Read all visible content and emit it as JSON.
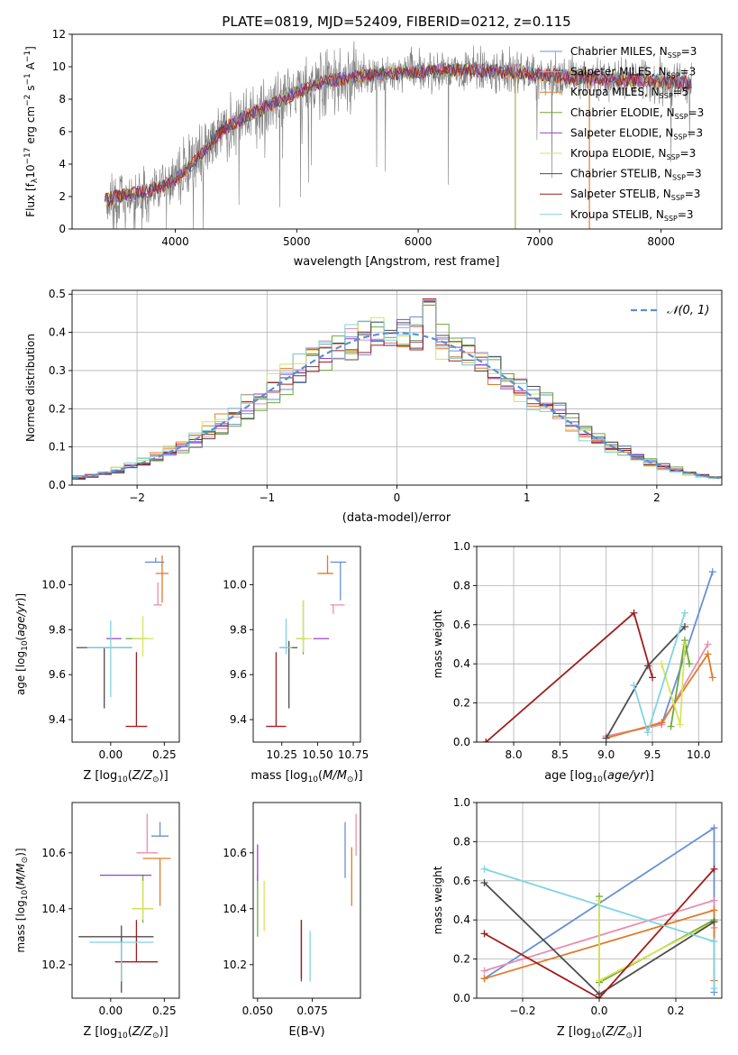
{
  "figure": {
    "title": "PLATE=0819, MJD=52409, FIBERID=0212, z=0.115"
  },
  "series": [
    {
      "name": "Chabrier MILES, N$_{SSP}$=3",
      "label": "Chabrier MILES, N",
      "sub": "SSP",
      "tail": "=3",
      "color": "#6a8fd8"
    },
    {
      "name": "Salpeter MILES",
      "label": "Salpeter MILES, N",
      "sub": "SSP",
      "tail": "=3",
      "color": "#e88fb0"
    },
    {
      "name": "Kroupa MILES",
      "label": "Kroupa MILES, N",
      "sub": "SSP",
      "tail": "=5",
      "color": "#e07b2a"
    },
    {
      "name": "Chabrier ELODIE",
      "label": "Chabrier ELODIE, N",
      "sub": "SSP",
      "tail": "=3",
      "color": "#6aaa3a"
    },
    {
      "name": "Salpeter ELODIE",
      "label": "Salpeter ELODIE, N",
      "sub": "SSP",
      "tail": "=3",
      "color": "#9b3fc7"
    },
    {
      "name": "Kroupa ELODIE",
      "label": "Kroupa ELODIE, N",
      "sub": "SSP",
      "tail": "=3",
      "color": "#d8e35c"
    },
    {
      "name": "Chabrier STELIB",
      "label": "Chabrier STELIB, N",
      "sub": "SSP",
      "tail": "=3",
      "color": "#4d4d4d"
    },
    {
      "name": "Salpeter STELIB",
      "label": "Salpeter STELIB, N",
      "sub": "SSP",
      "tail": "=3",
      "color": "#a31c1c"
    },
    {
      "name": "Kroupa STELIB",
      "label": "Kroupa STELIB, N",
      "sub": "SSP",
      "tail": "=3",
      "color": "#7fd4e0"
    }
  ],
  "chart_data": [
    {
      "id": "spectrum",
      "type": "line",
      "xlabel": "wavelength [Angstrom, rest frame]",
      "ylabel": "Flux [f",
      "ylabel_full": "Flux [f_λ 10^-17 erg cm^-2 s^-1 A^-1]",
      "xlim": [
        3150,
        8500
      ],
      "ylim": [
        0,
        12
      ],
      "xticks": [
        4000,
        5000,
        6000,
        7000,
        8000
      ],
      "yticks": [
        0,
        2,
        4,
        6,
        8,
        10,
        12
      ],
      "grid": false,
      "legend_placement": "top-right",
      "continuum_x": [
        3400,
        3600,
        3800,
        4000,
        4200,
        4400,
        4600,
        4800,
        5000,
        5200,
        5400,
        5600,
        5800,
        6000,
        6200,
        6400,
        6600,
        6800,
        7000,
        7200,
        7400,
        7600,
        7800,
        8000,
        8250
      ],
      "continuum_y": [
        1.8,
        2.1,
        2.4,
        3.0,
        4.5,
        6.2,
        7.0,
        7.7,
        8.4,
        9.0,
        9.3,
        9.5,
        9.6,
        9.7,
        9.8,
        9.8,
        9.7,
        9.7,
        9.5,
        9.4,
        9.3,
        9.2,
        9.2,
        9.1,
        9.0
      ]
    },
    {
      "id": "residuals",
      "type": "histogram",
      "xlabel": "(data-model)/error",
      "ylabel": "Normed distribution",
      "xlim": [
        -2.5,
        2.5
      ],
      "ylim": [
        0,
        0.51
      ],
      "xticks": [
        -2,
        -1,
        0,
        1,
        2
      ],
      "yticks": [
        0.0,
        0.1,
        0.2,
        0.3,
        0.4,
        0.5
      ],
      "grid": true,
      "legend": "𝒩(0, 1)",
      "legend_placement": "top-right",
      "bin_width": 0.1
    },
    {
      "id": "age-vs-Z",
      "type": "errorbar",
      "xlabel": "Z [log",
      "ylabel": "age  [log",
      "xlim": [
        -0.18,
        0.32
      ],
      "ylim": [
        9.3,
        10.17
      ],
      "xticks": [
        0.0,
        0.25
      ],
      "yticks": [
        9.4,
        9.6,
        9.8,
        10.0
      ],
      "points": [
        {
          "x": 0.21,
          "y": 10.1,
          "xe": [
            0.05,
            0.04
          ],
          "ye": [
            0.0,
            0.02
          ],
          "s": 0
        },
        {
          "x": 0.22,
          "y": 9.91,
          "xe": [
            0.02,
            0.02
          ],
          "ye": [
            0.0,
            0.1
          ],
          "s": 1
        },
        {
          "x": 0.24,
          "y": 10.05,
          "xe": [
            0.03,
            0.03
          ],
          "ye": [
            0.13,
            0.08
          ],
          "s": 2
        },
        {
          "x": 0.12,
          "y": 9.76,
          "xe": [
            0.05,
            0.05
          ],
          "ye": [
            0.0,
            0.0
          ],
          "s": 3
        },
        {
          "x": 0.03,
          "y": 9.76,
          "xe": [
            0.05,
            0.02
          ],
          "ye": [
            0.0,
            0.0
          ],
          "s": 4
        },
        {
          "x": 0.15,
          "y": 9.76,
          "xe": [
            0.05,
            0.05
          ],
          "ye": [
            0.08,
            0.1
          ],
          "s": 5
        },
        {
          "x": -0.03,
          "y": 9.72,
          "xe": [
            0.13,
            0.13
          ],
          "ye": [
            0.27,
            0.0
          ],
          "s": 6
        },
        {
          "x": 0.12,
          "y": 9.37,
          "xe": [
            0.05,
            0.05
          ],
          "ye": [
            0.0,
            0.33
          ],
          "s": 7
        },
        {
          "x": 0.0,
          "y": 9.72,
          "xe": [
            0.11,
            0.1
          ],
          "ye": [
            0.22,
            0.12
          ],
          "s": 8
        }
      ]
    },
    {
      "id": "age-vs-mass",
      "type": "errorbar",
      "xlabel": "mass [log",
      "xlim": [
        10.05,
        10.8
      ],
      "ylim": [
        9.3,
        10.17
      ],
      "xticks": [
        10.25,
        10.5,
        10.75
      ],
      "yticks": [
        9.4,
        9.6,
        9.8,
        10.0
      ],
      "points": [
        {
          "x": 10.66,
          "y": 10.1,
          "xe": [
            0.07,
            0.04
          ],
          "ye": [
            0.17,
            0.0
          ],
          "s": 0
        },
        {
          "x": 10.61,
          "y": 9.91,
          "xe": [
            0.02,
            0.08
          ],
          "ye": [
            0.04,
            0.0
          ],
          "s": 1
        },
        {
          "x": 10.57,
          "y": 10.05,
          "xe": [
            0.07,
            0.04
          ],
          "ye": [
            0.0,
            0.08
          ],
          "s": 2
        },
        {
          "x": 10.4,
          "y": 9.76,
          "xe": [
            0.05,
            0.02
          ],
          "ye": [
            0.07,
            0.17
          ],
          "s": 3
        },
        {
          "x": 10.52,
          "y": 9.76,
          "xe": [
            0.05,
            0.06
          ],
          "ye": [
            0.0,
            0.0
          ],
          "s": 4
        },
        {
          "x": 10.4,
          "y": 9.76,
          "xe": [
            0.05,
            0.06
          ],
          "ye": [
            0.06,
            0.17
          ],
          "s": 5
        },
        {
          "x": 10.3,
          "y": 9.72,
          "xe": [
            0.06,
            0.06
          ],
          "ye": [
            0.27,
            0.03
          ],
          "s": 6
        },
        {
          "x": 10.21,
          "y": 9.37,
          "xe": [
            0.07,
            0.07
          ],
          "ye": [
            0.0,
            0.33
          ],
          "s": 7
        },
        {
          "x": 10.28,
          "y": 9.72,
          "xe": [
            0.05,
            0.04
          ],
          "ye": [
            0.03,
            0.13
          ],
          "s": 8
        }
      ]
    },
    {
      "id": "weight-vs-age",
      "type": "line",
      "xlabel": "age  [log",
      "ylabel": "mass weight",
      "xlim": [
        7.6,
        10.25
      ],
      "ylim": [
        0,
        1.0
      ],
      "xticks": [
        8.0,
        8.5,
        9.0,
        9.5,
        10.0
      ],
      "yticks": [
        0.0,
        0.2,
        0.4,
        0.6,
        0.8,
        1.0
      ],
      "grid": true,
      "lines": [
        {
          "s": 0,
          "x": [
            9.0,
            9.6,
            10.15
          ],
          "y": [
            0.03,
            0.09,
            0.87
          ]
        },
        {
          "s": 1,
          "x": [
            9.0,
            9.6,
            10.1
          ],
          "y": [
            0.03,
            0.09,
            0.5
          ]
        },
        {
          "s": 2,
          "x": [
            9.0,
            9.6,
            10.1,
            10.15
          ],
          "y": [
            0.02,
            0.1,
            0.45,
            0.33
          ]
        },
        {
          "s": 3,
          "x": [
            9.7,
            9.85,
            9.9
          ],
          "y": [
            0.08,
            0.52,
            0.4
          ]
        },
        {
          "s": 5,
          "x": [
            9.6,
            9.8,
            9.85
          ],
          "y": [
            0.4,
            0.09,
            0.5
          ]
        },
        {
          "s": 6,
          "x": [
            9.0,
            9.45,
            9.85
          ],
          "y": [
            0.02,
            0.39,
            0.59
          ]
        },
        {
          "s": 7,
          "x": [
            7.7,
            9.3,
            9.5
          ],
          "y": [
            0.0,
            0.66,
            0.33
          ]
        },
        {
          "s": 8,
          "x": [
            9.3,
            9.45,
            9.85
          ],
          "y": [
            0.29,
            0.05,
            0.66
          ]
        }
      ]
    },
    {
      "id": "mass-vs-Z",
      "type": "errorbar",
      "xlabel": "Z [log",
      "ylabel": "mass [log",
      "xlim": [
        -0.18,
        0.32
      ],
      "ylim": [
        10.08,
        10.78
      ],
      "xticks": [
        0.0,
        0.25
      ],
      "yticks": [
        10.2,
        10.4,
        10.6
      ],
      "points": [
        {
          "x": 0.23,
          "y": 10.66,
          "xe": [
            0.04,
            0.04
          ],
          "ye": [
            0.0,
            0.05
          ],
          "s": 0
        },
        {
          "x": 0.17,
          "y": 10.6,
          "xe": [
            0.05,
            0.05
          ],
          "ye": [
            0.0,
            0.14
          ],
          "s": 1
        },
        {
          "x": 0.23,
          "y": 10.58,
          "xe": [
            0.08,
            0.05
          ],
          "ye": [
            0.17,
            0.0
          ],
          "s": 2
        },
        {
          "x": 0.15,
          "y": 10.4,
          "xe": [
            0.05,
            0.05
          ],
          "ye": [
            0.05,
            0.12
          ],
          "s": 3
        },
        {
          "x": 0.09,
          "y": 10.52,
          "xe": [
            0.14,
            0.1
          ],
          "ye": [
            0.0,
            0.0
          ],
          "s": 4
        },
        {
          "x": 0.15,
          "y": 10.4,
          "xe": [
            0.05,
            0.05
          ],
          "ye": [
            0.04,
            0.1
          ],
          "s": 5
        },
        {
          "x": 0.05,
          "y": 10.3,
          "xe": [
            0.2,
            0.15
          ],
          "ye": [
            0.2,
            0.04
          ],
          "s": 6
        },
        {
          "x": 0.12,
          "y": 10.21,
          "xe": [
            0.1,
            0.1
          ],
          "ye": [
            0.0,
            0.15
          ],
          "s": 7
        },
        {
          "x": 0.05,
          "y": 10.28,
          "xe": [
            0.15,
            0.15
          ],
          "ye": [
            0.14,
            0.0
          ],
          "s": 8
        }
      ]
    },
    {
      "id": "mass-vs-EBV",
      "type": "errorbar",
      "xlabel": "E(B-V)",
      "xlim": [
        0.048,
        0.097
      ],
      "ylim": [
        10.08,
        10.78
      ],
      "xticks": [
        0.05,
        0.075
      ],
      "yticks": [
        10.2,
        10.4,
        10.6
      ],
      "points": [
        {
          "x": 0.09,
          "y": 10.66,
          "xe": [
            0,
            0
          ],
          "ye": [
            0.15,
            0.05
          ],
          "s": 0
        },
        {
          "x": 0.095,
          "y": 10.66,
          "xe": [
            0,
            0
          ],
          "ye": [
            0.07,
            0.08
          ],
          "s": 1
        },
        {
          "x": 0.093,
          "y": 10.58,
          "xe": [
            0,
            0
          ],
          "ye": [
            0.17,
            0.04
          ],
          "s": 2
        },
        {
          "x": 0.05,
          "y": 10.4,
          "xe": [
            0,
            0
          ],
          "ye": [
            0.1,
            0.12
          ],
          "s": 3
        },
        {
          "x": 0.05,
          "y": 10.5,
          "xe": [
            0,
            0
          ],
          "ye": [
            0.0,
            0.13
          ],
          "s": 4
        },
        {
          "x": 0.053,
          "y": 10.4,
          "xe": [
            0,
            0
          ],
          "ye": [
            0.08,
            0.1
          ],
          "s": 5
        },
        {
          "x": 0.07,
          "y": 10.3,
          "xe": [
            0,
            0
          ],
          "ye": [
            0.16,
            0.06
          ],
          "s": 6
        },
        {
          "x": 0.07,
          "y": 10.21,
          "xe": [
            0,
            0
          ],
          "ye": [
            0.06,
            0.15
          ],
          "s": 7
        },
        {
          "x": 0.074,
          "y": 10.28,
          "xe": [
            0,
            0
          ],
          "ye": [
            0.14,
            0.04
          ],
          "s": 8
        }
      ]
    },
    {
      "id": "weight-vs-Z",
      "type": "line",
      "xlabel": "Z [log",
      "ylabel": "mass weight",
      "xlim": [
        -0.32,
        0.32
      ],
      "ylim": [
        0,
        1.0
      ],
      "xticks": [
        -0.2,
        0.0,
        0.2
      ],
      "yticks": [
        0.0,
        0.2,
        0.4,
        0.6,
        0.8,
        1.0
      ],
      "grid": true,
      "lines": [
        {
          "s": 0,
          "x": [
            -0.3,
            0.3,
            0.3
          ],
          "y": [
            0.1,
            0.87,
            0.03
          ]
        },
        {
          "s": 1,
          "x": [
            -0.3,
            0.3,
            0.3
          ],
          "y": [
            0.14,
            0.5,
            0.36
          ]
        },
        {
          "s": 2,
          "x": [
            -0.3,
            0.3,
            0.3
          ],
          "y": [
            0.1,
            0.45,
            0.09
          ]
        },
        {
          "s": 3,
          "x": [
            0.0,
            0.0,
            0.3
          ],
          "y": [
            0.52,
            0.08,
            0.4
          ]
        },
        {
          "s": 5,
          "x": [
            0.0,
            0.0,
            0.3
          ],
          "y": [
            0.5,
            0.09,
            0.39
          ]
        },
        {
          "s": 6,
          "x": [
            -0.3,
            0.0,
            0.3
          ],
          "y": [
            0.59,
            0.02,
            0.39
          ]
        },
        {
          "s": 7,
          "x": [
            -0.3,
            0.0,
            0.3
          ],
          "y": [
            0.33,
            0.0,
            0.66
          ]
        },
        {
          "s": 8,
          "x": [
            -0.3,
            0.3,
            0.3
          ],
          "y": [
            0.66,
            0.29,
            0.05
          ]
        }
      ]
    }
  ]
}
